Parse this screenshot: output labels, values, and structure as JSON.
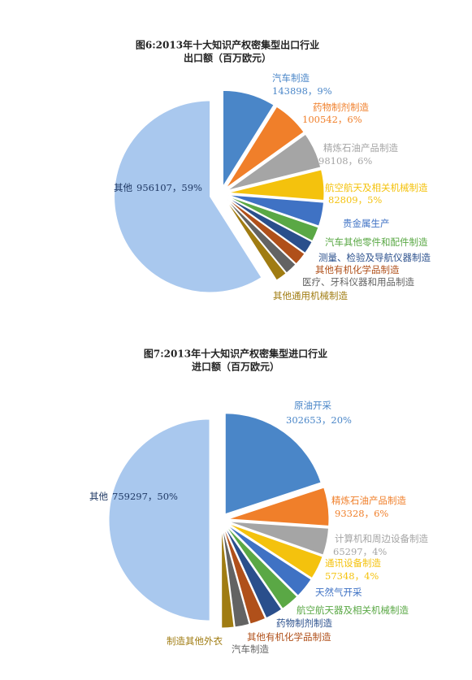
{
  "chart_data": [
    {
      "type": "pie",
      "title": "图6:2013年十大知识产权密集型出口行业",
      "subtitle": "出口额（百万欧元）",
      "categories": [
        "汽车制造",
        "药物制剂制造",
        "精炼石油产品制造",
        "航空航天及相关机械制造",
        "贵金属生产",
        "汽车其他零件和配件制造",
        "测量、检验及导航仪器制造",
        "其他有机化学品制造",
        "医疗、牙科仪器和用品制造",
        "其他通用机械制造",
        "其他"
      ],
      "values": [
        143898,
        100542,
        98108,
        82809,
        65000,
        40000,
        35000,
        35000,
        33000,
        31000,
        956107
      ],
      "value_labels": [
        "143898，9%",
        "100542，6%",
        "98108，6%",
        "82809，5%",
        null,
        null,
        null,
        null,
        null,
        null,
        "956107，59%"
      ],
      "colors": [
        "#4a86c8",
        "#f07f2a",
        "#a5a5a5",
        "#f4c20d",
        "#3f72c4",
        "#5aa845",
        "#2a4f8c",
        "#b0501a",
        "#636363",
        "#a07c12",
        "#a9c8ee"
      ]
    },
    {
      "type": "pie",
      "title": "图7:2013年十大知识产权密集型进口行业",
      "subtitle": "进口额（百万欧元）",
      "categories": [
        "原油开采",
        "精炼石油产品制造",
        "计算机和周边设备制造",
        "通讯设备制造",
        "天然气开采",
        "航空航天器及相关机械制造",
        "药物制剂制造",
        "其他有机化学品制造",
        "汽车制造",
        "制造其他外衣",
        "其他"
      ],
      "values": [
        302653,
        93328,
        65297,
        57348,
        50000,
        45000,
        42000,
        38000,
        35000,
        30000,
        759297
      ],
      "value_labels": [
        "302653，20%",
        "93328，6%",
        "65297，4%",
        "57348，4%",
        null,
        null,
        null,
        null,
        null,
        null,
        "759297，50%"
      ],
      "colors": [
        "#4a86c8",
        "#f07f2a",
        "#a5a5a5",
        "#f4c20d",
        "#3f72c4",
        "#5aa845",
        "#2a4f8c",
        "#b0501a",
        "#636363",
        "#a07c12",
        "#a9c8ee"
      ]
    }
  ]
}
